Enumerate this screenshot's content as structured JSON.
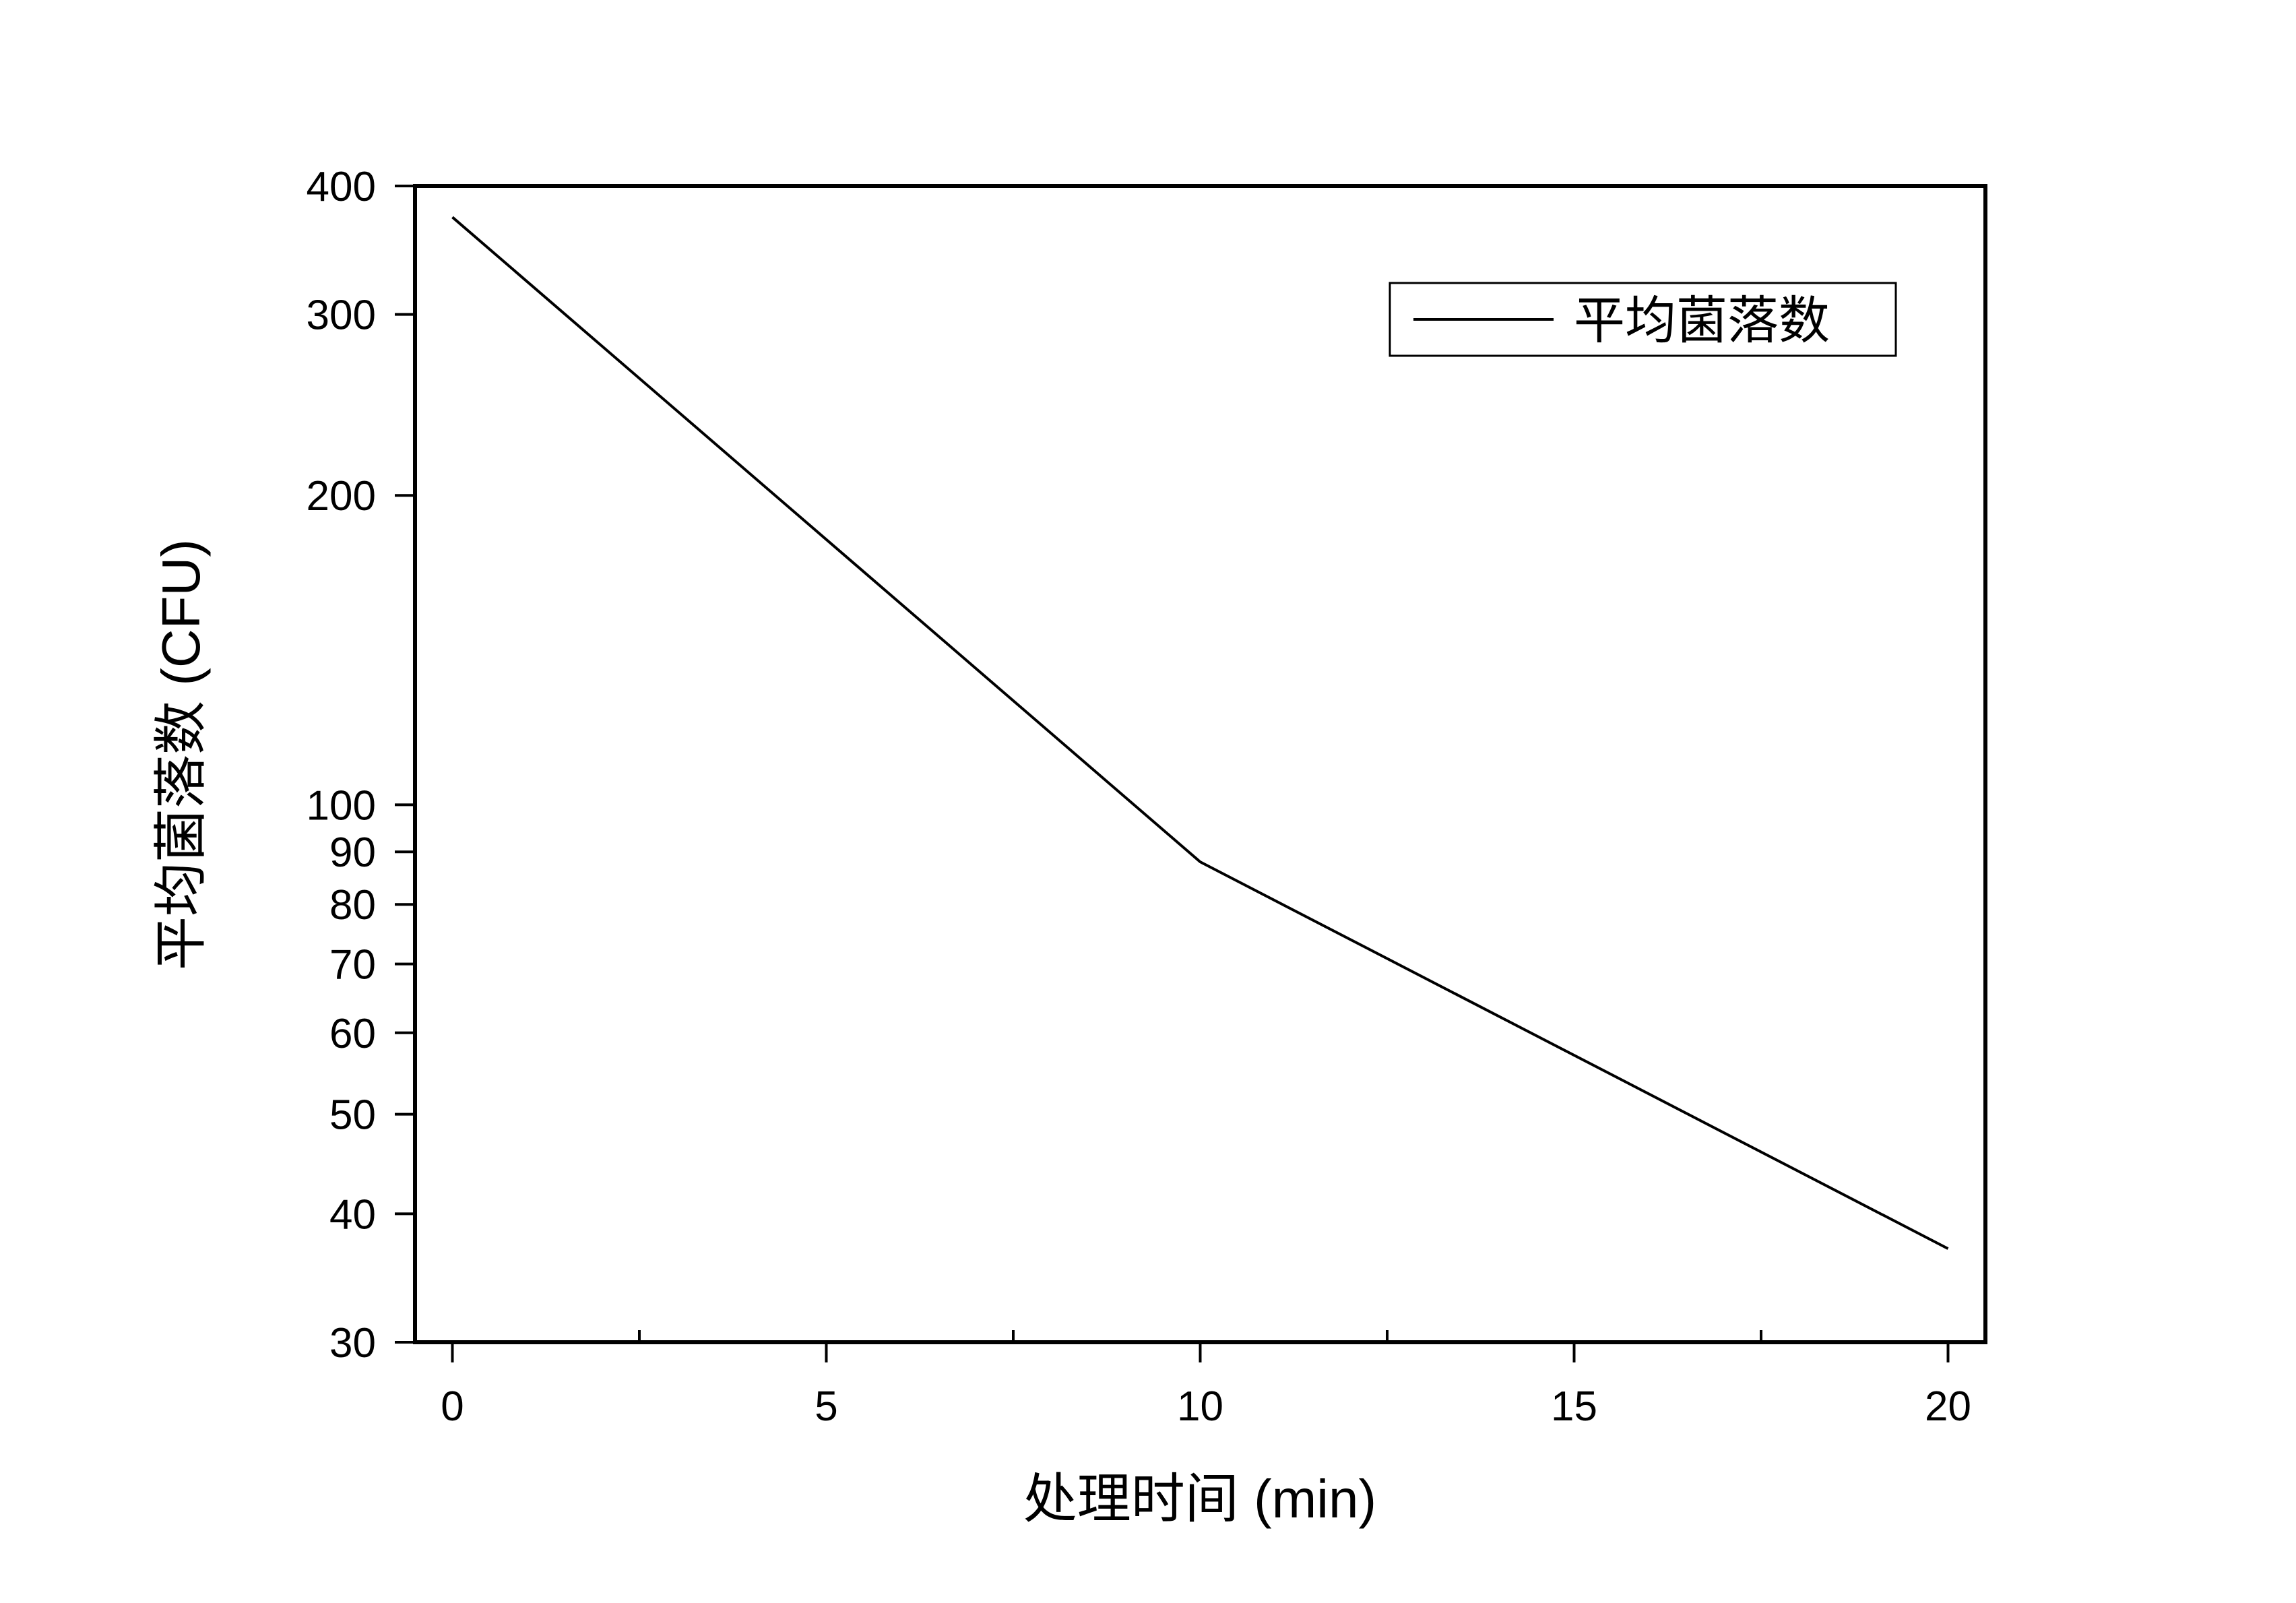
{
  "chart_data": {
    "type": "line",
    "title": "",
    "xlabel": "处理时间 (min)",
    "ylabel": "平均菌落数 (CFU)",
    "x_scale": "linear",
    "y_scale": "log",
    "xlim": [
      -0.5,
      20.5
    ],
    "ylim": [
      30,
      400
    ],
    "x_ticks": [
      0,
      5,
      10,
      15,
      20
    ],
    "x_tick_labels": [
      "0",
      "5",
      "10",
      "15",
      "20"
    ],
    "x_minor_ticks": [
      2.5,
      7.5,
      12.5,
      17.5
    ],
    "y_ticks": [
      30,
      40,
      50,
      60,
      70,
      80,
      90,
      100,
      200,
      300,
      400
    ],
    "y_tick_labels": [
      "30",
      "40",
      "50",
      "60",
      "70",
      "80",
      "90",
      "100",
      "200",
      "300",
      "400"
    ],
    "grid": false,
    "legend_position": "top-right",
    "series": [
      {
        "name": "平均菌落数",
        "color": "#000000",
        "x": [
          0,
          10,
          20
        ],
        "y": [
          373,
          88,
          37
        ]
      }
    ]
  }
}
